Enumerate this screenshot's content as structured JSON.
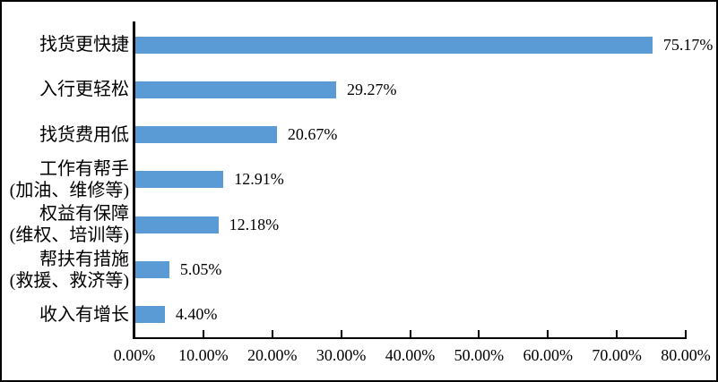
{
  "chart_data": {
    "type": "bar",
    "orientation": "horizontal",
    "title": "",
    "categories": [
      [
        "找货更快捷"
      ],
      [
        "入行更轻松"
      ],
      [
        "找货费用低"
      ],
      [
        "工作有帮手",
        "(加油、维修等)"
      ],
      [
        "权益有保障",
        "(维权、培训等)"
      ],
      [
        "帮扶有措施",
        "(救援、救济等)"
      ],
      [
        "收入有增长"
      ]
    ],
    "values": [
      75.17,
      29.27,
      20.67,
      12.91,
      12.18,
      5.05,
      4.4
    ],
    "value_labels": [
      "75.17%",
      "29.27%",
      "20.67%",
      "12.91%",
      "12.18%",
      "5.05%",
      "4.40%"
    ],
    "xlim": [
      0,
      80
    ],
    "x_tick_labels": [
      "0.00%",
      "10.00%",
      "20.00%",
      "30.00%",
      "40.00%",
      "50.00%",
      "60.00%",
      "70.00%",
      "80.00%"
    ],
    "grid": false,
    "legend_position": "none",
    "bar_color": "#5B9BD5",
    "axis_color": "#000000",
    "text_color": "#000000",
    "background_color": "#FFFFFF"
  }
}
